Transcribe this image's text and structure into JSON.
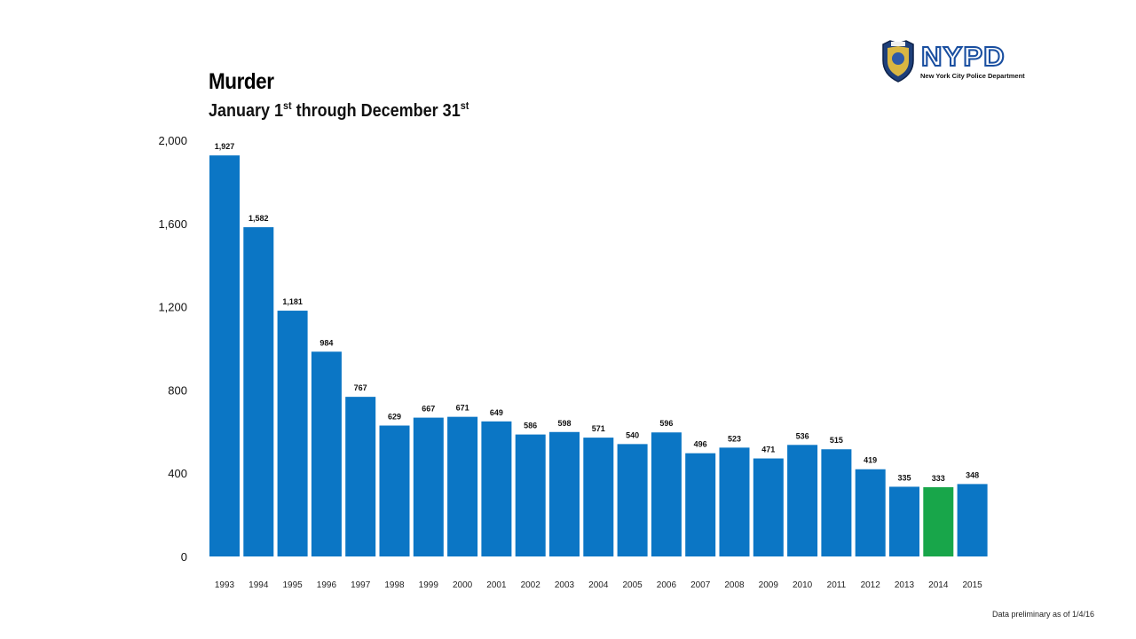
{
  "header": {
    "title": "Murder",
    "subtitle_parts": [
      "January 1",
      "st",
      " through December 31",
      "st"
    ],
    "logo_word": "NYPD",
    "logo_tagline": "New York City Police Department"
  },
  "footnote": "Data preliminary as of 1/4/16",
  "colors": {
    "bar": "#0b76c5",
    "highlight_bar": "#18a64a",
    "text": "#111111"
  },
  "chart_data": {
    "type": "bar",
    "title": "Murder",
    "subtitle": "January 1st through December 31st",
    "categories": [
      "1993",
      "1994",
      "1995",
      "1996",
      "1997",
      "1998",
      "1999",
      "2000",
      "2001",
      "2002",
      "2003",
      "2004",
      "2005",
      "2006",
      "2007",
      "2008",
      "2009",
      "2010",
      "2011",
      "2012",
      "2013",
      "2014",
      "2015"
    ],
    "values": [
      1927,
      1582,
      1181,
      984,
      767,
      629,
      667,
      671,
      649,
      586,
      598,
      571,
      540,
      596,
      496,
      523,
      471,
      536,
      515,
      419,
      335,
      333,
      348
    ],
    "value_labels": [
      "1,927",
      "1,582",
      "1,181",
      "984",
      "767",
      "629",
      "667",
      "671",
      "649",
      "586",
      "598",
      "571",
      "540",
      "596",
      "496",
      "523",
      "471",
      "536",
      "515",
      "419",
      "335",
      "333",
      "348"
    ],
    "highlight_category": "2014",
    "ylim": [
      0,
      2000
    ],
    "yticks": [
      0,
      400,
      800,
      1200,
      1600,
      2000
    ],
    "ytick_labels": [
      "0",
      "400",
      "800",
      "1,200",
      "1,600",
      "2,000"
    ],
    "xlabel": "",
    "ylabel": "",
    "grid": false,
    "legend": "none"
  }
}
